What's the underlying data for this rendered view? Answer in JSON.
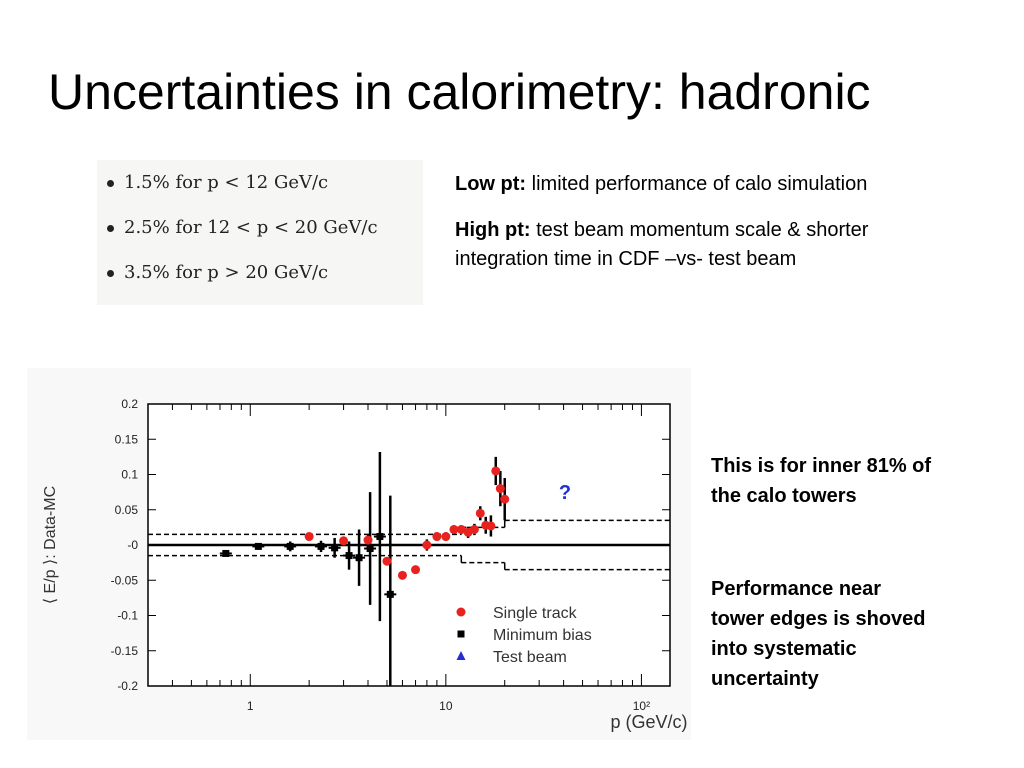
{
  "slide": {
    "title": "Uncertainties in calorimetry: hadronic",
    "bullets": [
      "1.5% for p < 12 GeV/c",
      "2.5% for 12 < p < 20 GeV/c",
      "3.5% for p > 20 GeV/c"
    ],
    "low_pt_label": "Low pt:",
    "low_pt_text": "limited performance of calo simulation",
    "high_pt_label": "High pt:",
    "high_pt_text_1": "test beam momentum scale & shorter",
    "high_pt_text_2": "integration time in CDF –vs- test beam",
    "note_1_line_1": "This is for inner 81% of",
    "note_1_line_2": "the calo towers",
    "note_2_line_1": "Performance near",
    "note_2_line_2": "tower edges is shoved",
    "note_2_line_3": "into systematic",
    "note_2_line_4": "uncertainty"
  },
  "chart_data": {
    "type": "scatter",
    "xlabel": "p (GeV/c)",
    "ylabel": "⟨ E/p ⟩: Data-MC",
    "x_scale": "log",
    "xlim": [
      0.3,
      140
    ],
    "ylim": [
      -0.2,
      0.2
    ],
    "x_ticks": [
      {
        "value": 1,
        "label": "1"
      },
      {
        "value": 10,
        "label": "10"
      },
      {
        "value": 100,
        "label": "10²"
      }
    ],
    "y_ticks": [
      {
        "value": 0.2,
        "label": "0.2"
      },
      {
        "value": 0.15,
        "label": "0.15"
      },
      {
        "value": 0.1,
        "label": "0.1"
      },
      {
        "value": 0.05,
        "label": "0.05"
      },
      {
        "value": 0,
        "label": "-0"
      },
      {
        "value": -0.05,
        "label": "-0.05"
      },
      {
        "value": -0.1,
        "label": "-0.1"
      },
      {
        "value": -0.15,
        "label": "-0.15"
      },
      {
        "value": -0.2,
        "label": "-0.2"
      }
    ],
    "annotation": "?",
    "colors": {
      "single_track": "#e8231f",
      "minimum_bias": "#000000",
      "test_beam": "#2b2bd6"
    },
    "series": [
      {
        "name": "Single track",
        "marker": "circle",
        "points": [
          [
            2.0,
            0.012,
            0.005
          ],
          [
            3.0,
            0.006,
            0.006
          ],
          [
            4.0,
            0.007,
            0.008
          ],
          [
            5.0,
            -0.023,
            0.006
          ],
          [
            6.0,
            -0.043,
            0.005
          ],
          [
            7.0,
            -0.035,
            0.005
          ],
          [
            8.0,
            0.0,
            0.008
          ],
          [
            9.0,
            0.012,
            0.006
          ],
          [
            10.0,
            0.012,
            0.006
          ],
          [
            11.0,
            0.022,
            0.006
          ],
          [
            12.0,
            0.022,
            0.006
          ],
          [
            13.0,
            0.018,
            0.008
          ],
          [
            14.0,
            0.022,
            0.008
          ],
          [
            15.0,
            0.045,
            0.01
          ],
          [
            16.0,
            0.028,
            0.012
          ],
          [
            17.0,
            0.027,
            0.015
          ],
          [
            18.0,
            0.105,
            0.02
          ],
          [
            19.0,
            0.08,
            0.025
          ],
          [
            20.0,
            0.065,
            0.03
          ]
        ]
      },
      {
        "name": "Minimum bias",
        "marker": "square",
        "points": [
          [
            0.75,
            -0.012,
            0.004
          ],
          [
            1.1,
            -0.002,
            0.004
          ],
          [
            1.6,
            -0.002,
            0.007
          ],
          [
            2.3,
            -0.002,
            0.008
          ],
          [
            2.7,
            -0.004,
            0.014
          ],
          [
            3.2,
            -0.015,
            0.02
          ],
          [
            3.6,
            -0.018,
            0.04
          ],
          [
            4.1,
            -0.005,
            0.08
          ],
          [
            4.6,
            0.012,
            0.12
          ],
          [
            5.2,
            -0.07,
            0.14
          ]
        ]
      },
      {
        "name": "Test beam",
        "marker": "triangle",
        "points": []
      }
    ],
    "systematic_bands": [
      {
        "x_range": [
          0.3,
          12
        ],
        "value": 0.015
      },
      {
        "x_range": [
          12,
          20
        ],
        "value": 0.025
      },
      {
        "x_range": [
          20,
          140
        ],
        "value": 0.035
      }
    ]
  }
}
